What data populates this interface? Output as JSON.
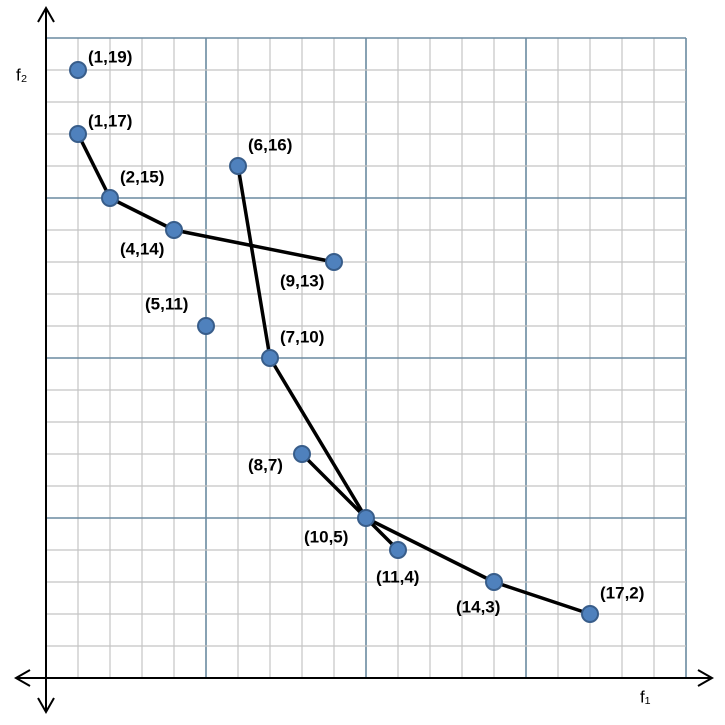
{
  "chart_data": {
    "type": "scatter",
    "xlabel": "f₁",
    "ylabel": "f₂",
    "xlim": [
      0,
      20
    ],
    "ylim": [
      0,
      20
    ],
    "xticks": [
      0,
      1,
      2,
      3,
      4,
      5,
      6,
      7,
      8,
      9,
      10,
      11,
      12,
      13,
      14,
      15,
      16,
      17,
      18,
      19,
      20
    ],
    "yticks": [
      0,
      1,
      2,
      3,
      4,
      5,
      6,
      7,
      8,
      9,
      10,
      11,
      12,
      13,
      14,
      15,
      16,
      17,
      18,
      19,
      20
    ],
    "grid": true,
    "color": "#4f81bd",
    "x": [
      1,
      1,
      6,
      2,
      4,
      9,
      5,
      7,
      8,
      10,
      11,
      14,
      17
    ],
    "values": [
      19,
      17,
      16,
      15,
      14,
      13,
      11,
      10,
      7,
      5,
      4,
      3,
      2
    ],
    "value_labels": [
      "(1,19)",
      "(1,17)",
      "(6,16)",
      "(2,15)",
      "(4,14)",
      "(9,13)",
      "(5,11)",
      "(7,10)",
      "(8,7)",
      "(10,5)",
      "(11,4)",
      "(14,3)",
      "(17,2)"
    ],
    "line_color": "#000000",
    "lines": [
      {
        "x": [
          1,
          2,
          4,
          9
        ],
        "values": [
          17,
          15,
          14,
          13
        ]
      },
      {
        "x": [
          6,
          7,
          10,
          11
        ],
        "values": [
          16,
          10,
          5,
          4
        ]
      },
      {
        "x": [
          8,
          10,
          14,
          17
        ],
        "values": [
          7,
          5,
          3,
          2
        ]
      }
    ]
  }
}
